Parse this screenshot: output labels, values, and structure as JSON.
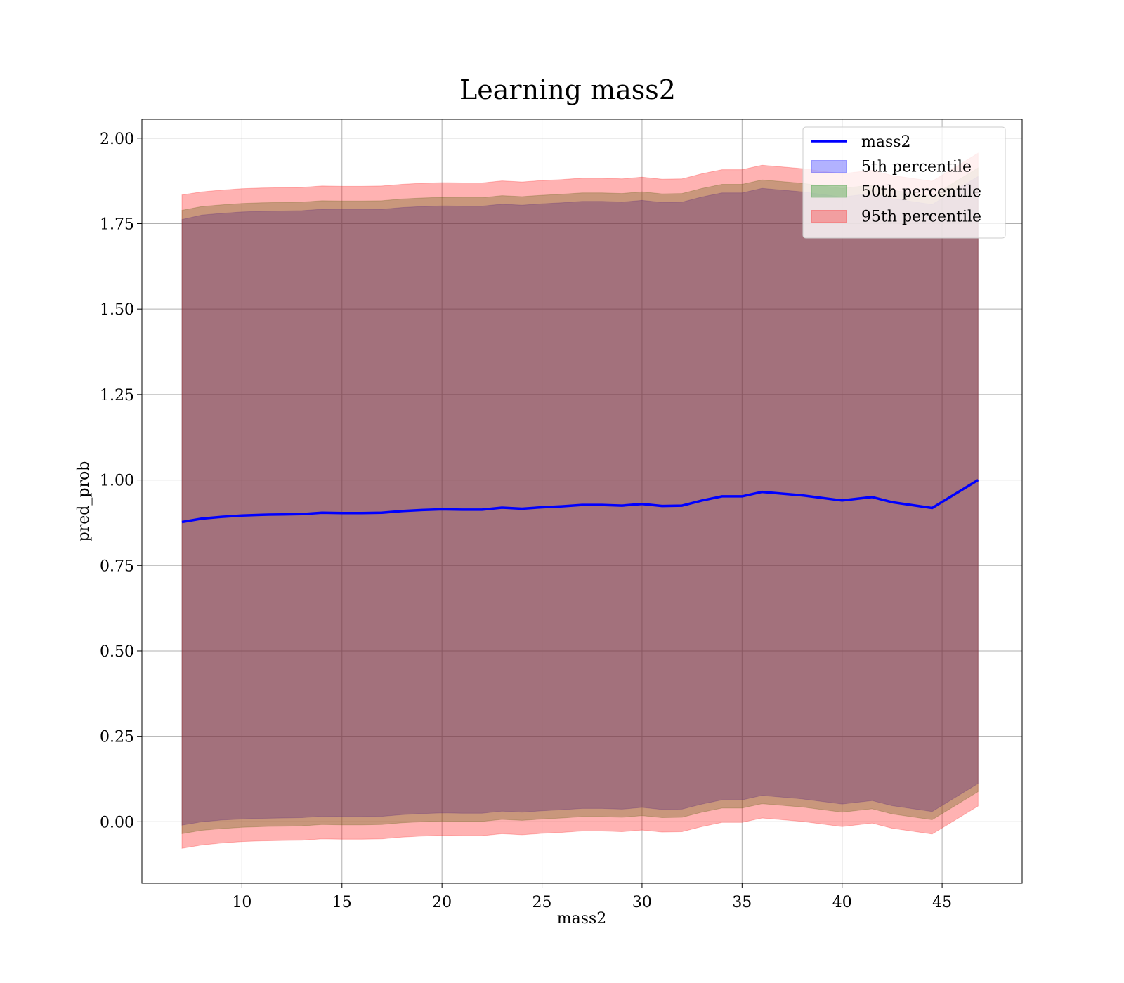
{
  "chart_data": {
    "type": "line",
    "title": "Learning mass2",
    "xlabel": "mass2",
    "ylabel": "pred_prob",
    "xlim": [
      5,
      49
    ],
    "ylim": [
      -0.18,
      2.055
    ],
    "xticks": [
      10,
      15,
      20,
      25,
      30,
      35,
      40,
      45
    ],
    "yticks": [
      0.0,
      0.25,
      0.5,
      0.75,
      1.0,
      1.25,
      1.5,
      1.75,
      2.0
    ],
    "ytick_labels": [
      "0.00",
      "0.25",
      "0.50",
      "0.75",
      "1.00",
      "1.25",
      "1.50",
      "1.75",
      "2.00"
    ],
    "grid": true,
    "legend_position": "top-right",
    "x": [
      7.0,
      8.0,
      9.0,
      10.0,
      11.0,
      12.0,
      13.0,
      14.0,
      15.0,
      16.0,
      17.0,
      18.0,
      19.0,
      20.0,
      21.0,
      22.0,
      23.0,
      24.0,
      25.0,
      26.0,
      27.0,
      28.0,
      29.0,
      30.0,
      31.0,
      32.0,
      33.0,
      34.0,
      35.0,
      36.0,
      38.0,
      40.0,
      41.5,
      42.5,
      44.5,
      46.8
    ],
    "series": [
      {
        "name": "mass2",
        "kind": "line",
        "color": "#0000ff",
        "values": [
          0.877,
          0.887,
          0.892,
          0.896,
          0.898,
          0.899,
          0.9,
          0.904,
          0.903,
          0.903,
          0.904,
          0.909,
          0.912,
          0.914,
          0.913,
          0.913,
          0.919,
          0.916,
          0.92,
          0.923,
          0.927,
          0.927,
          0.925,
          0.93,
          0.924,
          0.925,
          0.94,
          0.952,
          0.952,
          0.965,
          0.955,
          0.94,
          0.95,
          0.935,
          0.918,
          1.0
        ]
      },
      {
        "name": "5th percentile",
        "kind": "band",
        "color": "#0000ff",
        "opacity": 0.3,
        "lower": [
          -0.01,
          0.0,
          0.005,
          0.008,
          0.01,
          0.011,
          0.012,
          0.016,
          0.015,
          0.015,
          0.016,
          0.021,
          0.024,
          0.026,
          0.025,
          0.025,
          0.031,
          0.028,
          0.032,
          0.035,
          0.039,
          0.039,
          0.037,
          0.042,
          0.036,
          0.037,
          0.052,
          0.064,
          0.064,
          0.077,
          0.067,
          0.052,
          0.062,
          0.047,
          0.03,
          0.112
        ],
        "upper": [
          1.762,
          1.775,
          1.78,
          1.784,
          1.786,
          1.787,
          1.788,
          1.792,
          1.791,
          1.791,
          1.792,
          1.797,
          1.8,
          1.802,
          1.801,
          1.801,
          1.807,
          1.804,
          1.808,
          1.811,
          1.815,
          1.815,
          1.813,
          1.818,
          1.812,
          1.813,
          1.828,
          1.84,
          1.84,
          1.853,
          1.843,
          1.828,
          1.838,
          1.823,
          1.806,
          1.888
        ]
      },
      {
        "name": "50th percentile",
        "kind": "band",
        "color": "#008000",
        "opacity": 0.3,
        "lower": [
          -0.035,
          -0.025,
          -0.02,
          -0.016,
          -0.014,
          -0.013,
          -0.012,
          -0.008,
          -0.009,
          -0.009,
          -0.008,
          -0.003,
          0.0,
          0.002,
          0.001,
          0.001,
          0.007,
          0.004,
          0.008,
          0.011,
          0.015,
          0.015,
          0.013,
          0.018,
          0.012,
          0.013,
          0.028,
          0.04,
          0.04,
          0.053,
          0.043,
          0.028,
          0.038,
          0.023,
          0.006,
          0.088
        ],
        "upper": [
          1.789,
          1.8,
          1.805,
          1.809,
          1.811,
          1.812,
          1.813,
          1.817,
          1.816,
          1.816,
          1.817,
          1.822,
          1.825,
          1.827,
          1.826,
          1.826,
          1.832,
          1.829,
          1.833,
          1.836,
          1.84,
          1.84,
          1.838,
          1.843,
          1.837,
          1.838,
          1.853,
          1.865,
          1.865,
          1.878,
          1.868,
          1.853,
          1.863,
          1.848,
          1.831,
          1.913
        ]
      },
      {
        "name": "95th percentile",
        "kind": "band",
        "color": "#ff0000",
        "opacity": 0.3,
        "lower": [
          -0.078,
          -0.068,
          -0.062,
          -0.058,
          -0.056,
          -0.055,
          -0.054,
          -0.05,
          -0.051,
          -0.051,
          -0.05,
          -0.045,
          -0.042,
          -0.04,
          -0.041,
          -0.041,
          -0.035,
          -0.038,
          -0.034,
          -0.031,
          -0.027,
          -0.027,
          -0.029,
          -0.024,
          -0.03,
          -0.029,
          -0.014,
          -0.002,
          -0.002,
          0.011,
          0.001,
          -0.014,
          -0.004,
          -0.019,
          -0.036,
          0.046
        ],
        "upper": [
          1.834,
          1.843,
          1.848,
          1.852,
          1.854,
          1.855,
          1.856,
          1.86,
          1.859,
          1.859,
          1.86,
          1.865,
          1.868,
          1.87,
          1.869,
          1.869,
          1.875,
          1.872,
          1.876,
          1.879,
          1.883,
          1.883,
          1.881,
          1.886,
          1.88,
          1.881,
          1.896,
          1.908,
          1.908,
          1.921,
          1.911,
          1.896,
          1.906,
          1.891,
          1.874,
          1.956
        ]
      }
    ]
  }
}
